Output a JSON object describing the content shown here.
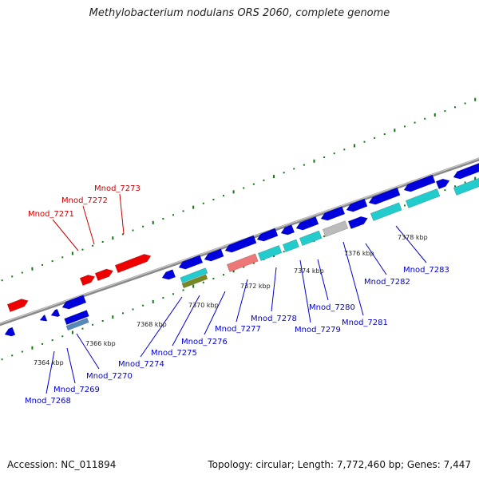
{
  "title": "Methylobacterium nodulans ORS 2060, complete genome",
  "footer": {
    "accession": "Accession: NC_011894",
    "topology": "Topology: circular; Length: 7,772,460 bp; Genes: 7,447"
  },
  "colors": {
    "forward_gene": "#0000dd",
    "reverse_gene": "#0000dd",
    "highlight_gene": "#ee0000",
    "label_blue": "#0000cc",
    "label_red": "#cc0000",
    "cyan_gene": "#22cccc",
    "pink_gene": "#ee7777",
    "gray_gene": "#bbbbbb",
    "olive_gene": "#778822",
    "steel_gene": "#5588bb",
    "dots": "#117711",
    "backbone": "#888888"
  },
  "scale_ticks": [
    "7364 kbp",
    "7366 kbp",
    "7368 kbp",
    "7370 kbp",
    "7372 kbp",
    "7374 kbp",
    "7376 kbp",
    "7378 kbp"
  ],
  "gene_labels": [
    {
      "id": "Mnod_7268",
      "text": "Mnod_7268",
      "color": "blue"
    },
    {
      "id": "Mnod_7269",
      "text": "Mnod_7269",
      "color": "blue"
    },
    {
      "id": "Mnod_7270",
      "text": "Mnod_7270",
      "color": "blue"
    },
    {
      "id": "Mnod_7271",
      "text": "Mnod_7271",
      "color": "red"
    },
    {
      "id": "Mnod_7272",
      "text": "Mnod_7272",
      "color": "red"
    },
    {
      "id": "Mnod_7273",
      "text": "Mnod_7273",
      "color": "red"
    },
    {
      "id": "Mnod_7274",
      "text": "Mnod_7274",
      "color": "blue"
    },
    {
      "id": "Mnod_7275",
      "text": "Mnod_7275",
      "color": "blue"
    },
    {
      "id": "Mnod_7276",
      "text": "Mnod_7276",
      "color": "blue"
    },
    {
      "id": "Mnod_7277",
      "text": "Mnod_7277",
      "color": "blue"
    },
    {
      "id": "Mnod_7278",
      "text": "Mnod_7278",
      "color": "blue"
    },
    {
      "id": "Mnod_7279",
      "text": "Mnod_7279",
      "color": "blue"
    },
    {
      "id": "Mnod_7280",
      "text": "Mnod_7280",
      "color": "blue"
    },
    {
      "id": "Mnod_7281",
      "text": "Mnod_7281",
      "color": "blue"
    },
    {
      "id": "Mnod_7282",
      "text": "Mnod_7282",
      "color": "blue"
    },
    {
      "id": "Mnod_7283",
      "text": "Mnod_7283",
      "color": "blue"
    }
  ]
}
